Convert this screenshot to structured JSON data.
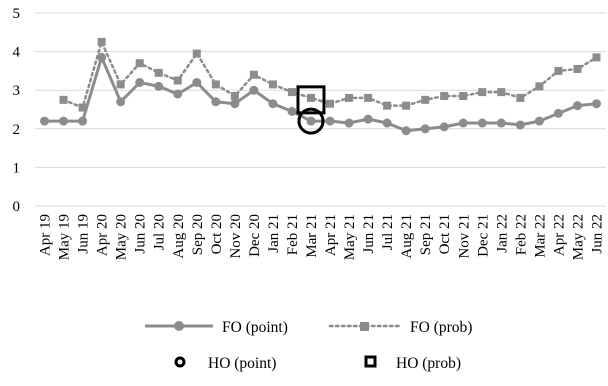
{
  "chart_data": {
    "type": "line",
    "title": "",
    "xlabel": "",
    "ylabel": "",
    "ylim": [
      0,
      5
    ],
    "yticks": [
      "0",
      "1",
      "2",
      "3",
      "4",
      "5"
    ],
    "grid": "horizontal",
    "legend_position": "bottom",
    "categories": [
      "Apr 19",
      "May 19",
      "Jun 19",
      "Apr 20",
      "May 20",
      "Jun 20",
      "Jul 20",
      "Aug 20",
      "Sep 20",
      "Oct 20",
      "Nov 20",
      "Dec 20",
      "Jan 21",
      "Feb 21",
      "Mar 21",
      "Apr 21",
      "May 21",
      "Jun 21",
      "Jul 21",
      "Aug 21",
      "Sep 21",
      "Oct 21",
      "Nov 21",
      "Dec 21",
      "Jan 22",
      "Feb 22",
      "Mar 22",
      "Apr 22",
      "May 22",
      "Jun 22"
    ],
    "series": [
      {
        "name": "FO (point)",
        "style": "solid-circle",
        "color": "#8c8c8c",
        "values": [
          2.2,
          2.2,
          2.2,
          3.85,
          2.7,
          3.2,
          3.1,
          2.9,
          3.2,
          2.7,
          2.65,
          3.0,
          2.65,
          2.45,
          2.2,
          2.2,
          2.15,
          2.25,
          2.15,
          1.95,
          2.0,
          2.05,
          2.15,
          2.15,
          2.15,
          2.1,
          2.2,
          2.4,
          2.6,
          2.65
        ]
      },
      {
        "name": "FO (prob)",
        "style": "dotted-square",
        "color": "#8c8c8c",
        "values": [
          null,
          2.75,
          2.55,
          4.25,
          3.15,
          3.7,
          3.45,
          3.25,
          3.95,
          3.15,
          2.85,
          3.4,
          3.15,
          2.95,
          2.8,
          2.65,
          2.8,
          2.8,
          2.6,
          2.6,
          2.75,
          2.85,
          2.85,
          2.95,
          2.95,
          2.8,
          3.1,
          3.5,
          3.55,
          3.85
        ]
      },
      {
        "name": "HO (point)",
        "style": "hollow-circle",
        "color": "#000000",
        "points": [
          {
            "x": "Mar 21",
            "y": 2.2
          }
        ]
      },
      {
        "name": "HO (prob)",
        "style": "hollow-square",
        "color": "#000000",
        "points": [
          {
            "x": "Mar 21",
            "y": 2.75
          }
        ]
      }
    ]
  }
}
